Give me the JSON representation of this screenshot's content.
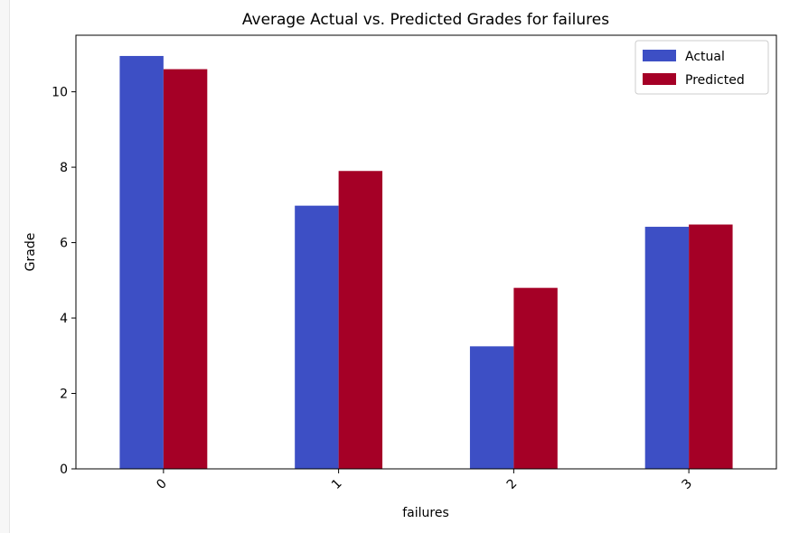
{
  "chart_data": {
    "type": "bar",
    "title": "Average Actual vs. Predicted Grades for failures",
    "xlabel": "failures",
    "ylabel": "Grade",
    "categories": [
      "0",
      "1",
      "2",
      "3"
    ],
    "ylim": [
      0,
      11.5
    ],
    "yticks": [
      0,
      2,
      4,
      6,
      8,
      10
    ],
    "series": [
      {
        "name": "Actual",
        "color": "#3d4fc5",
        "values": [
          10.95,
          6.98,
          3.25,
          6.42
        ]
      },
      {
        "name": "Predicted",
        "color": "#a50026",
        "values": [
          10.6,
          7.9,
          4.8,
          6.48
        ]
      }
    ],
    "legend_position": "top-right",
    "grid": false,
    "xtick_rotation": "45"
  }
}
